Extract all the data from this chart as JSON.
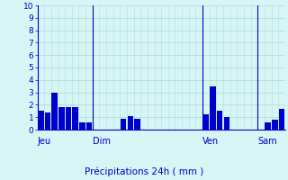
{
  "values": [
    1.5,
    1.4,
    3.0,
    1.8,
    1.8,
    1.8,
    0.6,
    0.6,
    0.0,
    0.0,
    0.0,
    0.0,
    0.9,
    1.1,
    0.9,
    0.0,
    0.0,
    0.0,
    0.0,
    0.0,
    0.0,
    0.0,
    0.0,
    0.0,
    1.2,
    3.5,
    1.5,
    1.0,
    0.0,
    0.0,
    0.0,
    0.0,
    0.0,
    0.6,
    0.8,
    1.7
  ],
  "num_bars": 36,
  "day_labels": [
    "Jeu",
    "Dim",
    "Ven",
    "Sam"
  ],
  "day_label_bar_idx": [
    0,
    8,
    24,
    32
  ],
  "day_vline_bar_idx": [
    8,
    24,
    32
  ],
  "bar_color": "#0000cc",
  "bg_color": "#d8f5f5",
  "grid_color": "#b0dede",
  "axis_color": "#0000cc",
  "xlabel": "Précipitations 24h ( mm )",
  "ylim": [
    0,
    10
  ],
  "yticks": [
    0,
    1,
    2,
    3,
    4,
    5,
    6,
    7,
    8,
    9,
    10
  ],
  "ytick_fontsize": 6.5,
  "xlabel_fontsize": 7.5,
  "day_label_fontsize": 7.0
}
